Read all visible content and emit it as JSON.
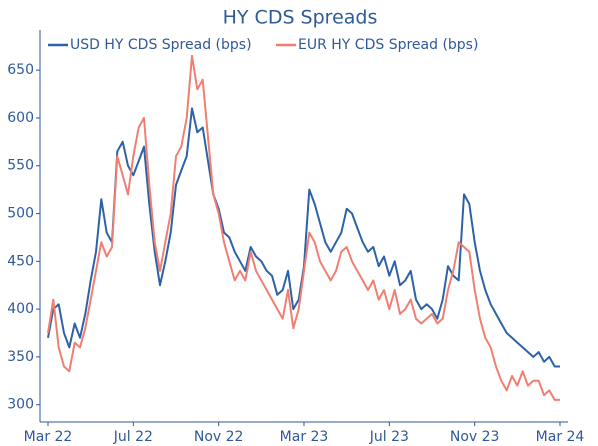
{
  "chart_data": {
    "type": "line",
    "title": "HY CDS Spreads",
    "categories": [
      "Mar 22",
      null,
      null,
      null,
      null,
      null,
      null,
      null,
      null,
      null,
      null,
      null,
      null,
      null,
      null,
      null,
      "Jul 22",
      null,
      null,
      null,
      null,
      null,
      null,
      null,
      null,
      null,
      null,
      null,
      null,
      null,
      null,
      null,
      "Nov 22",
      null,
      null,
      null,
      null,
      null,
      null,
      null,
      null,
      null,
      null,
      null,
      null,
      null,
      null,
      null,
      "Mar 23",
      null,
      null,
      null,
      null,
      null,
      null,
      null,
      null,
      null,
      null,
      null,
      null,
      null,
      null,
      null,
      "Jul 23",
      null,
      null,
      null,
      null,
      null,
      null,
      null,
      null,
      null,
      null,
      null,
      null,
      null,
      null,
      null,
      "Nov 23",
      null,
      null,
      null,
      null,
      null,
      null,
      null,
      null,
      null,
      null,
      null,
      null,
      null,
      null,
      null,
      "Mar 24"
    ],
    "series": [
      {
        "name": "USD HY CDS Spread (bps)",
        "color": "#2e62a6",
        "values": [
          370,
          400,
          405,
          375,
          360,
          385,
          370,
          395,
          430,
          460,
          515,
          480,
          470,
          565,
          575,
          550,
          540,
          555,
          570,
          510,
          460,
          425,
          450,
          480,
          530,
          545,
          560,
          610,
          585,
          590,
          555,
          520,
          505,
          480,
          475,
          460,
          450,
          440,
          465,
          455,
          450,
          440,
          435,
          415,
          420,
          440,
          400,
          410,
          445,
          525,
          510,
          490,
          470,
          460,
          470,
          480,
          505,
          500,
          485,
          470,
          460,
          465,
          445,
          455,
          435,
          450,
          425,
          430,
          440,
          410,
          400,
          405,
          400,
          390,
          410,
          445,
          435,
          430,
          520,
          510,
          470,
          440,
          420,
          405,
          395,
          385,
          375,
          370,
          365,
          360,
          355,
          350,
          355,
          345,
          350,
          340,
          340
        ]
      },
      {
        "name": "EUR HY CDS Spread (bps)",
        "color": "#f07f72",
        "values": [
          375,
          410,
          360,
          340,
          335,
          365,
          360,
          380,
          410,
          440,
          470,
          455,
          465,
          560,
          540,
          520,
          560,
          590,
          600,
          530,
          470,
          440,
          470,
          500,
          560,
          570,
          600,
          665,
          630,
          640,
          580,
          520,
          500,
          470,
          450,
          430,
          440,
          430,
          460,
          440,
          430,
          420,
          410,
          400,
          390,
          420,
          380,
          400,
          440,
          480,
          470,
          450,
          440,
          430,
          440,
          460,
          465,
          450,
          440,
          430,
          420,
          430,
          410,
          420,
          400,
          420,
          395,
          400,
          410,
          390,
          385,
          390,
          395,
          385,
          390,
          420,
          440,
          470,
          465,
          460,
          420,
          390,
          370,
          360,
          340,
          325,
          315,
          330,
          320,
          335,
          320,
          325,
          325,
          310,
          315,
          305,
          305
        ]
      }
    ],
    "ylim": [
      284,
      692
    ],
    "yticks": [
      300,
      350,
      400,
      450,
      500,
      550,
      600,
      650
    ],
    "grid": false
  }
}
